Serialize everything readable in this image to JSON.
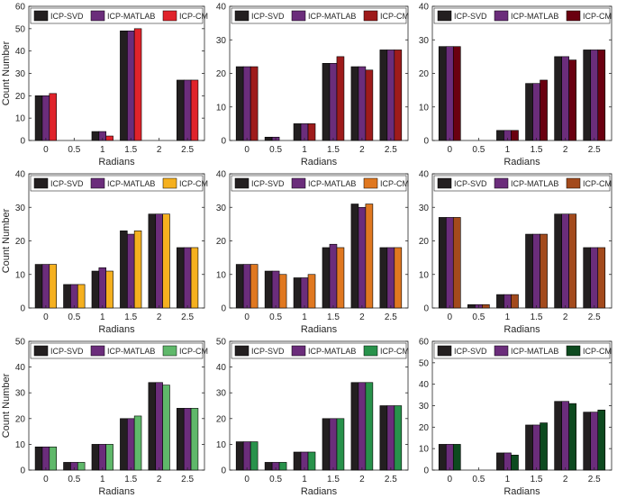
{
  "series_names": [
    "ICP-SVD",
    "ICP-MATLAB",
    "ICP-CM"
  ],
  "colors": {
    "svd": "#231f20",
    "matlab": "#6b2d7b",
    "cm_row1": [
      "#e0232b",
      "#9e1b1b",
      "#6a0010"
    ],
    "cm_row2": [
      "#f5b01f",
      "#e07820",
      "#a34a1c"
    ],
    "cm_row3": [
      "#5fb86a",
      "#28924b",
      "#0d4a1f"
    ]
  },
  "chart_data": [
    {
      "type": "bar",
      "categories": [
        "0",
        "0.5",
        "1",
        "1.5",
        "2",
        "2.5"
      ],
      "xlabel": "Radians",
      "ylabel": "Count Number",
      "ylim": [
        0,
        60
      ],
      "yticks": [
        0,
        10,
        20,
        30,
        40,
        50,
        60
      ],
      "series": [
        {
          "name": "ICP-SVD",
          "values": [
            20,
            0,
            4,
            49,
            0,
            27
          ]
        },
        {
          "name": "ICP-MATLAB",
          "values": [
            20,
            0,
            4,
            49,
            0,
            27
          ]
        },
        {
          "name": "ICP-CM",
          "values": [
            21,
            0,
            2,
            50,
            0,
            27
          ]
        }
      ]
    },
    {
      "type": "bar",
      "categories": [
        "0",
        "0.5",
        "1",
        "1.5",
        "2",
        "2.5"
      ],
      "xlabel": "Radians",
      "ylabel": "",
      "ylim": [
        0,
        40
      ],
      "yticks": [
        0,
        10,
        20,
        30,
        40
      ],
      "series": [
        {
          "name": "ICP-SVD",
          "values": [
            22,
            1,
            5,
            23,
            22,
            27
          ]
        },
        {
          "name": "ICP-MATLAB",
          "values": [
            22,
            1,
            5,
            23,
            22,
            27
          ]
        },
        {
          "name": "ICP-CM",
          "values": [
            22,
            0,
            5,
            25,
            21,
            27
          ]
        }
      ]
    },
    {
      "type": "bar",
      "categories": [
        "0",
        "0.5",
        "1",
        "1.5",
        "2",
        "2.5"
      ],
      "xlabel": "Radians",
      "ylabel": "",
      "ylim": [
        0,
        40
      ],
      "yticks": [
        0,
        10,
        20,
        30,
        40
      ],
      "series": [
        {
          "name": "ICP-SVD",
          "values": [
            28,
            0,
            3,
            17,
            25,
            27
          ]
        },
        {
          "name": "ICP-MATLAB",
          "values": [
            28,
            0,
            3,
            17,
            25,
            27
          ]
        },
        {
          "name": "ICP-CM",
          "values": [
            28,
            0,
            3,
            18,
            24,
            27
          ]
        }
      ]
    },
    {
      "type": "bar",
      "categories": [
        "0",
        "0.5",
        "1",
        "1.5",
        "2",
        "2.5"
      ],
      "xlabel": "Radians",
      "ylabel": "Count Number",
      "ylim": [
        0,
        40
      ],
      "yticks": [
        0,
        10,
        20,
        30,
        40
      ],
      "series": [
        {
          "name": "ICP-SVD",
          "values": [
            13,
            7,
            11,
            23,
            28,
            18
          ]
        },
        {
          "name": "ICP-MATLAB",
          "values": [
            13,
            7,
            12,
            22,
            28,
            18
          ]
        },
        {
          "name": "ICP-CM",
          "values": [
            13,
            7,
            11,
            23,
            28,
            18
          ]
        }
      ]
    },
    {
      "type": "bar",
      "categories": [
        "0",
        "0.5",
        "1",
        "1.5",
        "2",
        "2.5"
      ],
      "xlabel": "Radians",
      "ylabel": "",
      "ylim": [
        0,
        40
      ],
      "yticks": [
        0,
        10,
        20,
        30,
        40
      ],
      "series": [
        {
          "name": "ICP-SVD",
          "values": [
            13,
            11,
            9,
            18,
            31,
            18
          ]
        },
        {
          "name": "ICP-MATLAB",
          "values": [
            13,
            11,
            9,
            19,
            30,
            18
          ]
        },
        {
          "name": "ICP-CM",
          "values": [
            13,
            10,
            10,
            18,
            31,
            18
          ]
        }
      ]
    },
    {
      "type": "bar",
      "categories": [
        "0",
        "0.5",
        "1",
        "1.5",
        "2",
        "2.5"
      ],
      "xlabel": "Radians",
      "ylabel": "",
      "ylim": [
        0,
        40
      ],
      "yticks": [
        0,
        10,
        20,
        30,
        40
      ],
      "series": [
        {
          "name": "ICP-SVD",
          "values": [
            27,
            1,
            4,
            22,
            28,
            18
          ]
        },
        {
          "name": "ICP-MATLAB",
          "values": [
            27,
            1,
            4,
            22,
            28,
            18
          ]
        },
        {
          "name": "ICP-CM",
          "values": [
            27,
            1,
            4,
            22,
            28,
            18
          ]
        }
      ]
    },
    {
      "type": "bar",
      "categories": [
        "0",
        "0.5",
        "1",
        "1.5",
        "2",
        "2.5"
      ],
      "xlabel": "Radians",
      "ylabel": "Count Number",
      "ylim": [
        0,
        50
      ],
      "yticks": [
        0,
        10,
        20,
        30,
        40,
        50
      ],
      "series": [
        {
          "name": "ICP-SVD",
          "values": [
            9,
            3,
            10,
            20,
            34,
            24
          ]
        },
        {
          "name": "ICP-MATLAB",
          "values": [
            9,
            3,
            10,
            20,
            34,
            24
          ]
        },
        {
          "name": "ICP-CM",
          "values": [
            9,
            3,
            10,
            21,
            33,
            24
          ]
        }
      ]
    },
    {
      "type": "bar",
      "categories": [
        "0",
        "0.5",
        "1",
        "1.5",
        "2",
        "2.5"
      ],
      "xlabel": "Radians",
      "ylabel": "",
      "ylim": [
        0,
        50
      ],
      "yticks": [
        0,
        10,
        20,
        30,
        40,
        50
      ],
      "series": [
        {
          "name": "ICP-SVD",
          "values": [
            11,
            3,
            7,
            20,
            34,
            25
          ]
        },
        {
          "name": "ICP-MATLAB",
          "values": [
            11,
            3,
            7,
            20,
            34,
            25
          ]
        },
        {
          "name": "ICP-CM",
          "values": [
            11,
            3,
            7,
            20,
            34,
            25
          ]
        }
      ]
    },
    {
      "type": "bar",
      "categories": [
        "0",
        "0.5",
        "1",
        "1.5",
        "2",
        "2.5"
      ],
      "xlabel": "Radians",
      "ylabel": "",
      "ylim": [
        0,
        60
      ],
      "yticks": [
        0,
        10,
        20,
        30,
        40,
        50,
        60
      ],
      "series": [
        {
          "name": "ICP-SVD",
          "values": [
            12,
            0,
            8,
            21,
            32,
            27
          ]
        },
        {
          "name": "ICP-MATLAB",
          "values": [
            12,
            0,
            8,
            21,
            32,
            27
          ]
        },
        {
          "name": "ICP-CM",
          "values": [
            12,
            0,
            7,
            22,
            31,
            28
          ]
        }
      ]
    }
  ]
}
